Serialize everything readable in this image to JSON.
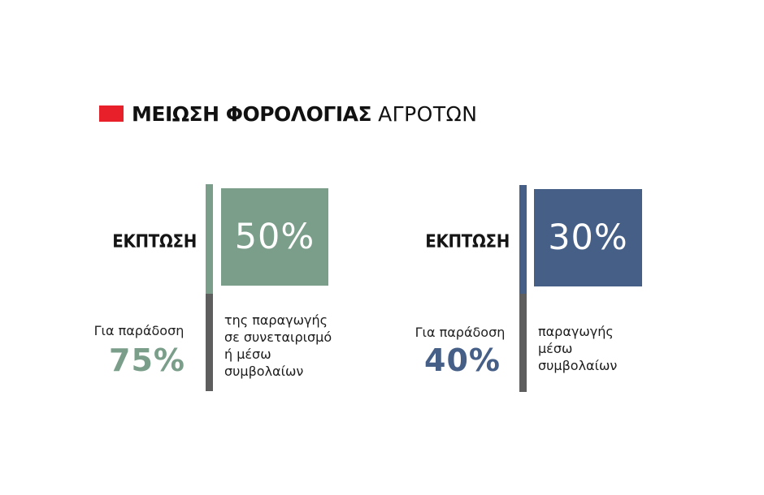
{
  "title": {
    "bold": "ΜΕΙΩΣΗ ΦΟΡΟΛΟΓΙΑΣ",
    "light": "ΑΓΡΟΤΩΝ",
    "marker_color": "#e8202a"
  },
  "panels": [
    {
      "label": "ΕΚΠΤΩΣΗ",
      "discount": "50%",
      "sub_label": "Για παράδοση",
      "delivery_pct": "75%",
      "description": [
        "της παραγωγής",
        "σε συνεταιρισμό",
        "ή μέσω",
        "συμβολαίων"
      ],
      "color": "#7a9e8a"
    },
    {
      "label": "ΕΚΠΤΩΣΗ",
      "discount": "30%",
      "sub_label": "Για παράδοση",
      "delivery_pct": "40%",
      "description": [
        "παραγωγής",
        "μέσω",
        "συμβολαίων"
      ],
      "color": "#465f87"
    }
  ]
}
